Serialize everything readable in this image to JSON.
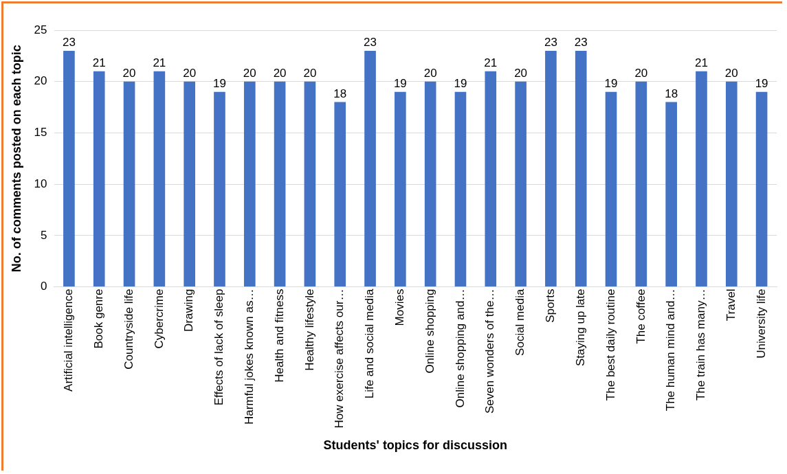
{
  "chart_data": {
    "type": "bar",
    "xlabel": "Students' topics for discussion",
    "ylabel": "No. of comments posted on each topic",
    "categories": [
      "Artificial intelligence",
      "Book genre",
      "Countryside life",
      "Cybercrime",
      "Drawing",
      "Effects of lack of sleep",
      "Harmful jokes known as…",
      "Health and fitness",
      "Healthy lifestyle",
      "How exercise affects our…",
      "Life and social media",
      "Movies",
      "Online shopping",
      "Online shopping and…",
      "Seven wonders of the…",
      "Social media",
      "Sports",
      "Staying up late",
      "The best daily routine",
      "The coffee",
      "The human mind and…",
      "The train has many…",
      "Travel",
      "University life"
    ],
    "values": [
      23,
      21,
      20,
      21,
      20,
      19,
      20,
      20,
      20,
      18,
      23,
      19,
      20,
      19,
      21,
      20,
      23,
      23,
      19,
      20,
      18,
      21,
      20,
      19
    ],
    "color": "#4472c4",
    "ylim": [
      0,
      25
    ],
    "yticks": [
      0,
      5,
      10,
      15,
      20,
      25
    ],
    "grid": "y",
    "data_labels": true,
    "legend": false
  }
}
